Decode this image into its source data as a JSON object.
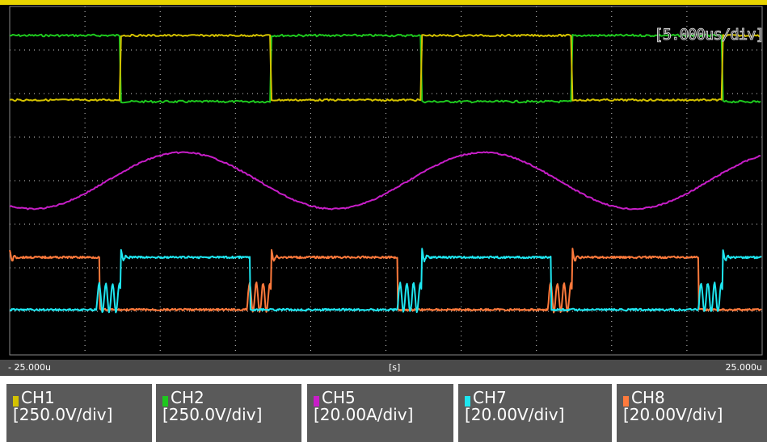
{
  "timebase": {
    "scale": "[5.000us/div]",
    "start": "- 25.000u",
    "unit": "[s]",
    "end": "25.000u"
  },
  "legend": [
    {
      "channel": "CH1",
      "scale": "[250.0V/div]",
      "color": "#d4c200"
    },
    {
      "channel": "CH2",
      "scale": "[250.0V/div]",
      "color": "#1ec81e"
    },
    {
      "channel": "CH5",
      "scale": "[20.00A/div]",
      "color": "#c81ec8"
    },
    {
      "channel": "CH7",
      "scale": "[20.00V/div]",
      "color": "#1ee6f0"
    },
    {
      "channel": "CH8",
      "scale": "[20.00V/div]",
      "color": "#ff7a3c"
    }
  ],
  "chart_data": {
    "type": "line",
    "xlabel": "[s]",
    "x_range_us": [
      -25,
      25
    ],
    "divisions": 10,
    "grid": true,
    "series": [
      {
        "name": "CH1",
        "waveform": "square",
        "high_intervals_us": [
          [
            -17.6,
            -7.6
          ],
          [
            2.4,
            12.4
          ],
          [
            22.4,
            25
          ]
        ],
        "color": "#d4c200"
      },
      {
        "name": "CH2",
        "waveform": "square",
        "high_intervals_us": [
          [
            -25,
            -17.6
          ],
          [
            -7.6,
            2.4
          ],
          [
            12.4,
            22.4
          ]
        ],
        "color": "#1ec81e"
      },
      {
        "name": "CH5",
        "waveform": "triangular-sinusoid",
        "period_us": 20,
        "peaks_us": [
          -13.5,
          6.5
        ],
        "troughs_us": [
          -22.5,
          -3.5,
          16
        ],
        "color": "#c81ec8"
      },
      {
        "name": "CH7",
        "waveform": "gate-drive",
        "high_intervals_us": [
          [
            -17.6,
            -9
          ],
          [
            2.4,
            11
          ],
          [
            22.4,
            25
          ]
        ],
        "color": "#1ee6f0"
      },
      {
        "name": "CH8",
        "waveform": "gate-drive",
        "high_intervals_us": [
          [
            -25,
            -19
          ],
          [
            -7.6,
            0.8
          ],
          [
            12.4,
            20.8
          ]
        ],
        "color": "#ff7a3c"
      }
    ]
  }
}
